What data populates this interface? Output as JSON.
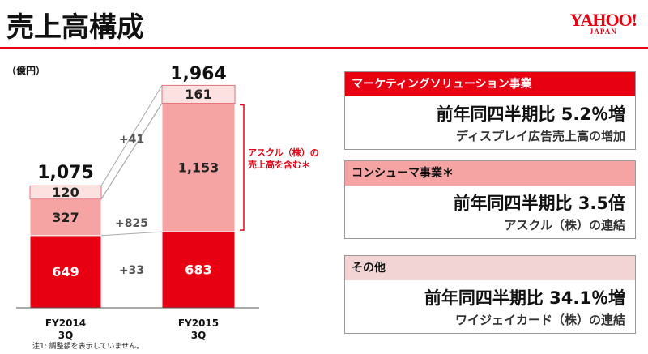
{
  "header": {
    "title": "売上高構成",
    "logo": "YAHOO!",
    "logo_sub": "JAPAN"
  },
  "chart_data": {
    "type": "bar",
    "stacked": true,
    "unit": "（億円）",
    "categories": [
      "FY2014\n3Q",
      "FY2015\n3Q"
    ],
    "series": [
      {
        "name": "マーケティングソリューション事業",
        "color": "#e60012",
        "values": [
          649,
          683
        ]
      },
      {
        "name": "コンシューマ事業＊",
        "color": "#f5a3a3",
        "values": [
          327,
          1153
        ],
        "value_labels": [
          "327",
          "1,153"
        ]
      },
      {
        "name": "その他",
        "color": "#fde0e0",
        "values": [
          120,
          161
        ]
      }
    ],
    "totals": {
      "values": [
        1075,
        1964
      ],
      "value_labels": [
        "1,075",
        "1,964"
      ]
    },
    "deltas": [
      "+33",
      "+825",
      "+41"
    ],
    "bracket_note": "アスクル（株）の\n売上高を含む＊",
    "ylim": [
      0,
      2000
    ]
  },
  "panels": [
    {
      "header": "マーケティングソリューション事業",
      "line1": "前年同四半期比 5.2％増",
      "line2": "ディスプレイ広告売上高の増加"
    },
    {
      "header": "コンシューマ事業＊",
      "line1": "前年同四半期比 3.5倍",
      "line2": "アスクル（株）の連結"
    },
    {
      "header": "その他",
      "line1": "前年同四半期比 34.1％増",
      "line2": "ワイジェイカード（株）の連結"
    }
  ],
  "footnote": "注1: 調整額を表示していません。"
}
